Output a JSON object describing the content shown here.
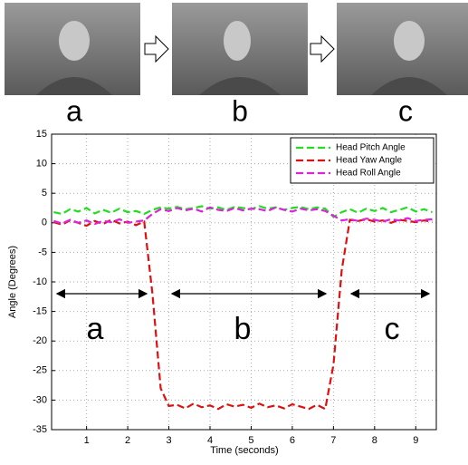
{
  "photo_labels": [
    "a",
    "b",
    "c"
  ],
  "chart_data": {
    "type": "line",
    "xlabel": "Time (seconds)",
    "ylabel": "Angle (Degrees)",
    "xlim": [
      0.15,
      9.5
    ],
    "ylim": [
      -35,
      15
    ],
    "xticks": [
      1,
      2,
      3,
      4,
      5,
      6,
      7,
      8,
      9
    ],
    "yticks": [
      -35,
      -30,
      -25,
      -20,
      -15,
      -10,
      -5,
      0,
      5,
      10,
      15
    ],
    "grid": true,
    "legend": "upper right",
    "annotations": [
      "a",
      "b",
      "c"
    ],
    "x": [
      0.2,
      0.4,
      0.6,
      0.8,
      1.0,
      1.2,
      1.4,
      1.6,
      1.8,
      2.0,
      2.2,
      2.4,
      2.6,
      2.8,
      3.0,
      3.2,
      3.4,
      3.6,
      3.8,
      4.0,
      4.2,
      4.4,
      4.6,
      4.8,
      5.0,
      5.2,
      5.4,
      5.6,
      5.8,
      6.0,
      6.2,
      6.4,
      6.6,
      6.8,
      7.0,
      7.2,
      7.4,
      7.6,
      7.8,
      8.0,
      8.2,
      8.4,
      8.6,
      8.8,
      9.0,
      9.2,
      9.4
    ],
    "series": [
      {
        "name": "Head Pitch Angle",
        "color": "#22dd22",
        "values": [
          1.8,
          1.5,
          2.3,
          1.9,
          2.5,
          1.6,
          2.2,
          1.7,
          2.4,
          1.8,
          2.0,
          1.5,
          2.2,
          2.6,
          2.4,
          2.7,
          2.3,
          2.5,
          2.8,
          2.4,
          2.6,
          2.2,
          2.7,
          2.5,
          2.3,
          2.8,
          2.4,
          2.6,
          2.2,
          2.5,
          2.7,
          2.3,
          2.6,
          2.4,
          1.0,
          1.8,
          2.3,
          1.7,
          2.4,
          2.0,
          2.5,
          1.8,
          2.2,
          2.6,
          1.9,
          2.3,
          1.8
        ]
      },
      {
        "name": "Head Yaw Angle",
        "color": "#dd1111",
        "values": [
          0.1,
          -0.3,
          0.4,
          0,
          -0.5,
          0.3,
          -0.2,
          0.5,
          -0.1,
          0.2,
          -0.4,
          0.2,
          -12,
          -28,
          -31,
          -30.8,
          -31.4,
          -30.6,
          -31.2,
          -30.9,
          -31.5,
          -30.7,
          -31.1,
          -30.8,
          -31.3,
          -30.6,
          -31.2,
          -30.9,
          -31.4,
          -30.7,
          -31.1,
          -31.5,
          -30.8,
          -31.5,
          -24,
          -8,
          0.5,
          0.3,
          0.6,
          0.2,
          0.4,
          0,
          0.5,
          0.3,
          0.1,
          0.4,
          0.2
        ]
      },
      {
        "name": "Head Roll Angle",
        "color": "#dd22dd",
        "values": [
          0.3,
          -0.1,
          0.5,
          0,
          0.4,
          -0.2,
          0.3,
          0.1,
          0.6,
          0,
          0.2,
          0.4,
          1.5,
          2.3,
          2.0,
          2.5,
          2.1,
          2.4,
          1.9,
          2.6,
          2.2,
          2.0,
          2.5,
          2.1,
          2.4,
          2.3,
          2.0,
          2.6,
          2.2,
          1.9,
          2.4,
          2.1,
          2.3,
          2.0,
          1.2,
          0.4,
          0.6,
          0.3,
          0.7,
          0.5,
          0.2,
          0.6,
          0.4,
          0.8,
          0.3,
          0.5,
          0.6
        ]
      }
    ]
  }
}
